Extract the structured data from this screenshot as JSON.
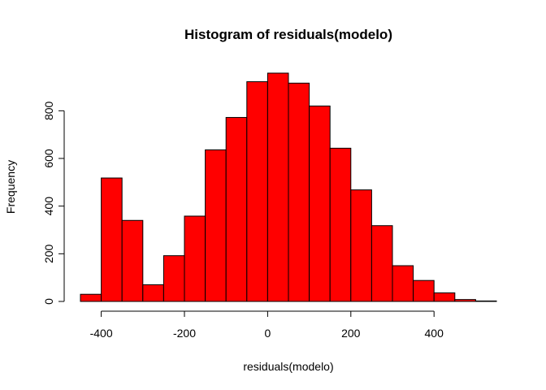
{
  "chart_data": {
    "type": "bar",
    "title": "Histogram of residuals(modelo)",
    "xlabel": "residuals(modelo)",
    "ylabel": "Frequency",
    "bar_color": "#FF0000",
    "bin_edges": [
      -450,
      -400,
      -350,
      -300,
      -250,
      -200,
      -150,
      -100,
      -50,
      0,
      50,
      100,
      150,
      200,
      250,
      300,
      350,
      400,
      450,
      500,
      550
    ],
    "values": [
      30,
      518,
      340,
      70,
      192,
      358,
      636,
      772,
      922,
      958,
      916,
      820,
      643,
      468,
      318,
      150,
      88,
      36,
      8,
      2
    ],
    "xlim": [
      -450,
      550
    ],
    "ylim": [
      0,
      958
    ],
    "x_ticks": [
      -400,
      -200,
      0,
      200,
      400
    ],
    "y_ticks": [
      0,
      200,
      400,
      600,
      800
    ],
    "grid": false
  }
}
